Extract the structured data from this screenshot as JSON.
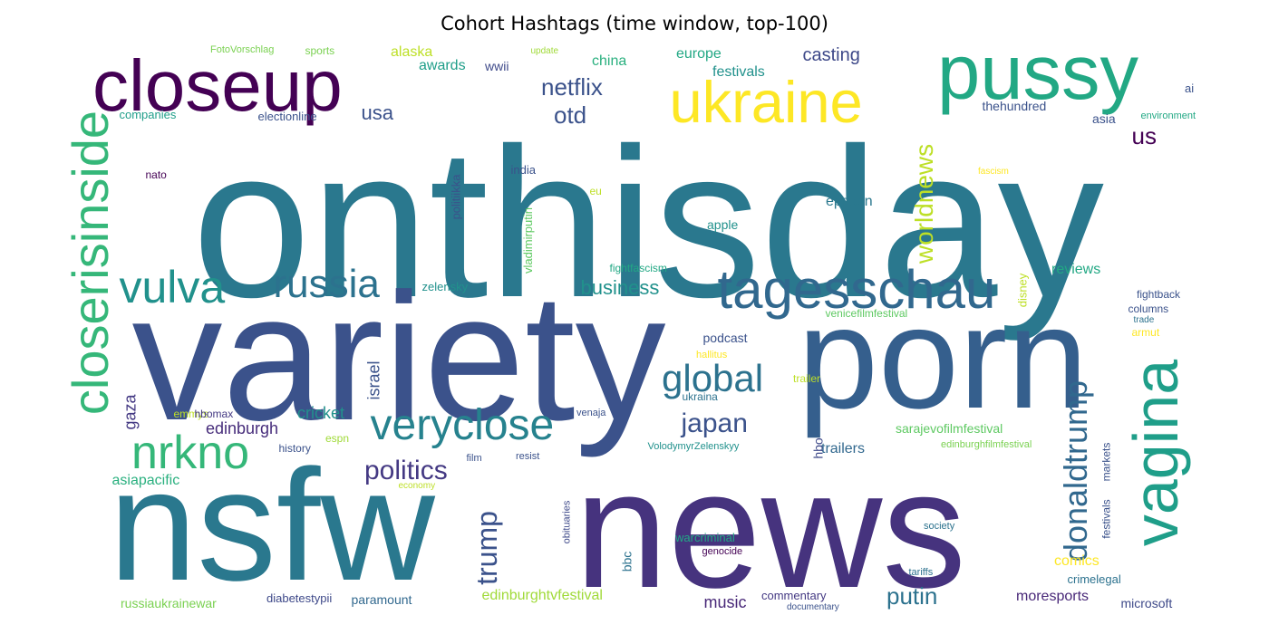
{
  "title": "Cohort Hashtags (time window, top-100)",
  "chart_data": {
    "type": "wordcloud",
    "title": "Cohort Hashtags (time window, top-100)",
    "colormap": "viridis",
    "words": [
      {
        "text": "onthisday",
        "weight": 100,
        "color": "#2a788e",
        "vertical": false
      },
      {
        "text": "variety",
        "weight": 85,
        "color": "#3b528b",
        "vertical": false
      },
      {
        "text": "news",
        "weight": 80,
        "color": "#46337e",
        "vertical": false
      },
      {
        "text": "nsfw",
        "weight": 75,
        "color": "#2a788e",
        "vertical": false
      },
      {
        "text": "porn",
        "weight": 72,
        "color": "#355f8d",
        "vertical": false
      },
      {
        "text": "closeup",
        "weight": 48,
        "color": "#440154",
        "vertical": false
      },
      {
        "text": "pussy",
        "weight": 46,
        "color": "#22a884",
        "vertical": false
      },
      {
        "text": "ukraine",
        "weight": 40,
        "color": "#fde725",
        "vertical": false
      },
      {
        "text": "vagina",
        "weight": 40,
        "color": "#1f9e89",
        "vertical": true
      },
      {
        "text": "tagesschau",
        "weight": 33,
        "color": "#31688e",
        "vertical": false
      },
      {
        "text": "closerisinside",
        "weight": 30,
        "color": "#35b779",
        "vertical": true
      },
      {
        "text": "nrkno",
        "weight": 28,
        "color": "#35b779",
        "vertical": false
      },
      {
        "text": "vulva",
        "weight": 27,
        "color": "#21918c",
        "vertical": false
      },
      {
        "text": "veryclose",
        "weight": 25,
        "color": "#26828e",
        "vertical": false
      },
      {
        "text": "russia",
        "weight": 24,
        "color": "#2c728e",
        "vertical": false
      },
      {
        "text": "global",
        "weight": 22,
        "color": "#2c728e",
        "vertical": false
      },
      {
        "text": "donaldtrump",
        "weight": 21,
        "color": "#31688e",
        "vertical": true
      },
      {
        "text": "trump",
        "weight": 19,
        "color": "#3b528b",
        "vertical": true
      },
      {
        "text": "politics",
        "weight": 17,
        "color": "#443983",
        "vertical": false
      },
      {
        "text": "japan",
        "weight": 17,
        "color": "#3b528b",
        "vertical": false
      },
      {
        "text": "worldnews",
        "weight": 16,
        "color": "#bddf26",
        "vertical": true
      },
      {
        "text": "putin",
        "weight": 15,
        "color": "#2c728e",
        "vertical": false
      },
      {
        "text": "netflix",
        "weight": 14,
        "color": "#3b528b",
        "vertical": false
      },
      {
        "text": "otd",
        "weight": 14,
        "color": "#3b528b",
        "vertical": false
      },
      {
        "text": "us",
        "weight": 14,
        "color": "#440154",
        "vertical": false
      },
      {
        "text": "business",
        "weight": 12,
        "color": "#21918c",
        "vertical": false
      },
      {
        "text": "edinburgh",
        "weight": 11,
        "color": "#472d7b",
        "vertical": false
      },
      {
        "text": "gaza",
        "weight": 11,
        "color": "#443983",
        "vertical": true
      },
      {
        "text": "israel",
        "weight": 11,
        "color": "#3b528b",
        "vertical": true
      },
      {
        "text": "usa",
        "weight": 11,
        "color": "#3b528b",
        "vertical": false
      },
      {
        "text": "casting",
        "weight": 10,
        "color": "#3e4989",
        "vertical": false
      },
      {
        "text": "cricket",
        "weight": 10,
        "color": "#21918c",
        "vertical": false
      },
      {
        "text": "comics",
        "weight": 10,
        "color": "#fde725",
        "vertical": false
      },
      {
        "text": "music",
        "weight": 10,
        "color": "#482878",
        "vertical": false
      },
      {
        "text": "moresports",
        "weight": 10,
        "color": "#482878",
        "vertical": false
      },
      {
        "text": "trailers",
        "weight": 10,
        "color": "#31688e",
        "vertical": false
      },
      {
        "text": "europe",
        "weight": 9,
        "color": "#22a884",
        "vertical": false
      },
      {
        "text": "awards",
        "weight": 9,
        "color": "#1f9e89",
        "vertical": false
      },
      {
        "text": "china",
        "weight": 9,
        "color": "#2ab07f",
        "vertical": false
      },
      {
        "text": "festivals",
        "weight": 9,
        "color": "#21918c",
        "vertical": false
      },
      {
        "text": "alaska",
        "weight": 9,
        "color": "#bddf26",
        "vertical": false
      },
      {
        "text": "epstein",
        "weight": 9,
        "color": "#2a788e",
        "vertical": false
      },
      {
        "text": "reviews",
        "weight": 9,
        "color": "#22a884",
        "vertical": false
      },
      {
        "text": "hbo",
        "weight": 9,
        "color": "#3e4989",
        "vertical": true
      },
      {
        "text": "asiapacific",
        "weight": 9,
        "color": "#2ab07f",
        "vertical": false
      },
      {
        "text": "paramount",
        "weight": 8,
        "color": "#31688e",
        "vertical": false
      },
      {
        "text": "russiaukrainewar",
        "weight": 8,
        "color": "#7ad151",
        "vertical": false
      },
      {
        "text": "edinburghtvfestival",
        "weight": 8,
        "color": "#a0da39",
        "vertical": false
      },
      {
        "text": "sarajevofilmfestival",
        "weight": 8,
        "color": "#5ec962",
        "vertical": false
      },
      {
        "text": "thehundred",
        "weight": 8,
        "color": "#3b528b",
        "vertical": false
      },
      {
        "text": "asia",
        "weight": 8,
        "color": "#3b528b",
        "vertical": false
      },
      {
        "text": "podcast",
        "weight": 8,
        "color": "#3b528b",
        "vertical": false
      },
      {
        "text": "apple",
        "weight": 8,
        "color": "#21918c",
        "vertical": false
      },
      {
        "text": "crimelegal",
        "weight": 7,
        "color": "#2c728e",
        "vertical": false
      },
      {
        "text": "microsoft",
        "weight": 7,
        "color": "#3e4989",
        "vertical": false
      },
      {
        "text": "diabetestypii",
        "weight": 7,
        "color": "#3e4989",
        "vertical": false
      },
      {
        "text": "commentary",
        "weight": 7,
        "color": "#443983",
        "vertical": false
      },
      {
        "text": "columns",
        "weight": 7,
        "color": "#3b528b",
        "vertical": false
      },
      {
        "text": "armut",
        "weight": 7,
        "color": "#fde725",
        "vertical": false
      },
      {
        "text": "wwii",
        "weight": 7,
        "color": "#3e4989",
        "vertical": false
      },
      {
        "text": "zelensky",
        "weight": 7,
        "color": "#21918c",
        "vertical": false
      },
      {
        "text": "india",
        "weight": 7,
        "color": "#3b528b",
        "vertical": false
      },
      {
        "text": "politiikka",
        "weight": 7,
        "color": "#3b528b",
        "vertical": true
      },
      {
        "text": "vladimirputin",
        "weight": 7,
        "color": "#5ec962",
        "vertical": true
      },
      {
        "text": "markets",
        "weight": 7,
        "color": "#3b528b",
        "vertical": true
      },
      {
        "text": "festivals",
        "weight": 7,
        "color": "#3b528b",
        "vertical": true
      },
      {
        "text": "bbc",
        "weight": 7,
        "color": "#2c728e",
        "vertical": true
      },
      {
        "text": "disney",
        "weight": 7,
        "color": "#bddf26",
        "vertical": true
      },
      {
        "text": "electionline",
        "weight": 7,
        "color": "#3b528b",
        "vertical": false
      },
      {
        "text": "companies",
        "weight": 7,
        "color": "#1f9e89",
        "vertical": false
      },
      {
        "text": "history",
        "weight": 6,
        "color": "#3b528b",
        "vertical": false
      },
      {
        "text": "espn",
        "weight": 6,
        "color": "#a0da39",
        "vertical": false
      },
      {
        "text": "emmys",
        "weight": 6,
        "color": "#bddf26",
        "vertical": false
      },
      {
        "text": "hbomax",
        "weight": 6,
        "color": "#443983",
        "vertical": false
      },
      {
        "text": "venaja",
        "weight": 6,
        "color": "#3b528b",
        "vertical": false
      },
      {
        "text": "ukraina",
        "weight": 6,
        "color": "#2c728e",
        "vertical": false
      },
      {
        "text": "trailer",
        "weight": 6,
        "color": "#bddf26",
        "vertical": false
      },
      {
        "text": "edinburghfilmfestival",
        "weight": 6,
        "color": "#7ad151",
        "vertical": false
      },
      {
        "text": "VolodymyrZelenskyy",
        "weight": 6,
        "color": "#21918c",
        "vertical": false
      },
      {
        "text": "warcriminal",
        "weight": 6,
        "color": "#22a884",
        "vertical": false
      },
      {
        "text": "genocide",
        "weight": 6,
        "color": "#440154",
        "vertical": false
      },
      {
        "text": "society",
        "weight": 6,
        "color": "#2c728e",
        "vertical": false
      },
      {
        "text": "tariffs",
        "weight": 6,
        "color": "#2c728e",
        "vertical": false
      },
      {
        "text": "fightback",
        "weight": 6,
        "color": "#3b528b",
        "vertical": false
      },
      {
        "text": "trade",
        "weight": 5,
        "color": "#2c728e",
        "vertical": false
      },
      {
        "text": "venicefilmfestival",
        "weight": 6,
        "color": "#5ec962",
        "vertical": false
      },
      {
        "text": "fightfascism",
        "weight": 6,
        "color": "#22a884",
        "vertical": false
      },
      {
        "text": "environment",
        "weight": 6,
        "color": "#22a884",
        "vertical": false
      },
      {
        "text": "ai",
        "weight": 6,
        "color": "#3b528b",
        "vertical": false
      },
      {
        "text": "nato",
        "weight": 6,
        "color": "#440154",
        "vertical": false
      },
      {
        "text": "FotoVorschlag",
        "weight": 6,
        "color": "#7ad151",
        "vertical": false
      },
      {
        "text": "sports",
        "weight": 6,
        "color": "#7ad151",
        "vertical": false
      },
      {
        "text": "update",
        "weight": 5,
        "color": "#a0da39",
        "vertical": false
      },
      {
        "text": "fascism",
        "weight": 5,
        "color": "#fde725",
        "vertical": false
      },
      {
        "text": "eu",
        "weight": 6,
        "color": "#bddf26",
        "vertical": false
      },
      {
        "text": "hallitus",
        "weight": 5,
        "color": "#fde725",
        "vertical": false
      },
      {
        "text": "resist",
        "weight": 6,
        "color": "#3b528b",
        "vertical": false
      },
      {
        "text": "film",
        "weight": 6,
        "color": "#3b528b",
        "vertical": false
      },
      {
        "text": "obituaries",
        "weight": 6,
        "color": "#3e4989",
        "vertical": true
      },
      {
        "text": "economy",
        "weight": 5,
        "color": "#bddf26",
        "vertical": false
      },
      {
        "text": "documentary",
        "weight": 5,
        "color": "#3b528b",
        "vertical": false
      }
    ]
  }
}
